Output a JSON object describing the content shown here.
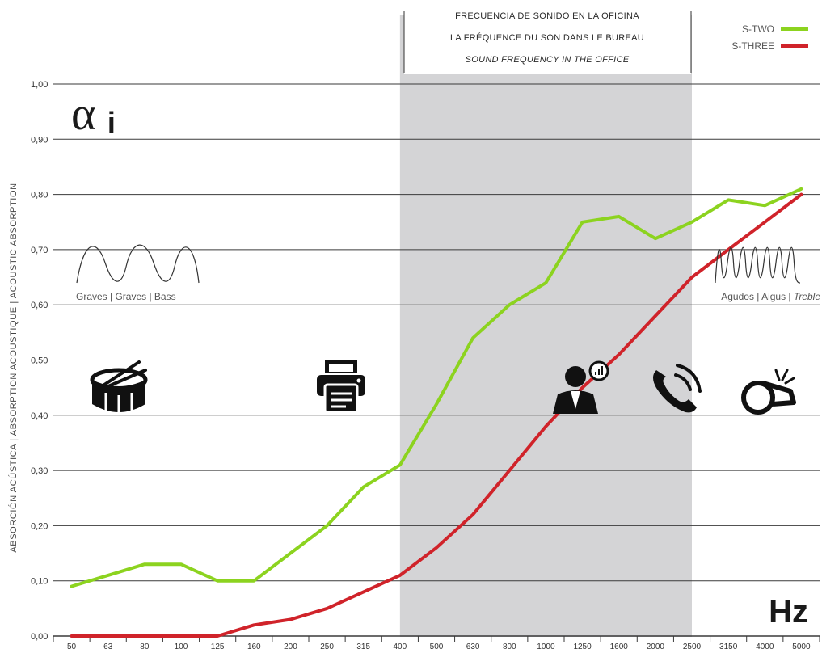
{
  "header": {
    "line_es": "FRECUENCIA DE SONIDO EN LA OFICINA",
    "line_fr": "LA FRÉQUENCE DU SON DANS LE BUREAU",
    "line_en": "SOUND FREQUENCY IN THE OFFICE"
  },
  "symbol": {
    "alpha": "α",
    "sub": "i"
  },
  "unit": "Hz",
  "waves": {
    "bass_label": "Graves | Graves | Bass",
    "treble_es_fr": "Agudos | Aigus | ",
    "treble_en": "Treble"
  },
  "icons": [
    "drum-icon",
    "printer-icon",
    "speaking-person-icon",
    "phone-icon",
    "whistle-icon"
  ],
  "colors": {
    "s_two": "#8cd31f",
    "s_three": "#d0232a",
    "band": "#d4d4d6",
    "grid": "#3a3a3a"
  },
  "chart_data": {
    "type": "line",
    "ylabel": "ABSORCIÓN ACÚSTICA | ABSORPTION ACOUSTIQUE | ACOUSTIC ABSORPTION",
    "xlabel": "Hz",
    "ylim": [
      0,
      1
    ],
    "y_ticks": [
      "0,00",
      "0,10",
      "0,20",
      "0,30",
      "0,40",
      "0,50",
      "0,60",
      "0,70",
      "0,80",
      "0,90",
      "1,00"
    ],
    "categories": [
      "50",
      "63",
      "80",
      "100",
      "125",
      "160",
      "200",
      "250",
      "315",
      "400",
      "500",
      "630",
      "800",
      "1000",
      "1250",
      "1600",
      "2000",
      "2500",
      "3150",
      "4000",
      "5000"
    ],
    "highlight_range": [
      "400",
      "2500"
    ],
    "grid": true,
    "legend_position": "top-right",
    "series": [
      {
        "name": "S-TWO",
        "color": "#8cd31f",
        "values": [
          0.09,
          0.11,
          0.13,
          0.13,
          0.1,
          0.1,
          0.15,
          0.2,
          0.27,
          0.31,
          0.42,
          0.54,
          0.6,
          0.64,
          0.75,
          0.76,
          0.72,
          0.75,
          0.79,
          0.78,
          0.81
        ]
      },
      {
        "name": "S-THREE",
        "color": "#d0232a",
        "values": [
          0.0,
          0.0,
          0.0,
          0.0,
          0.0,
          0.02,
          0.03,
          0.05,
          0.08,
          0.11,
          0.16,
          0.22,
          0.3,
          0.38,
          0.45,
          0.51,
          0.58,
          0.65,
          0.7,
          0.75,
          0.8
        ]
      }
    ]
  }
}
